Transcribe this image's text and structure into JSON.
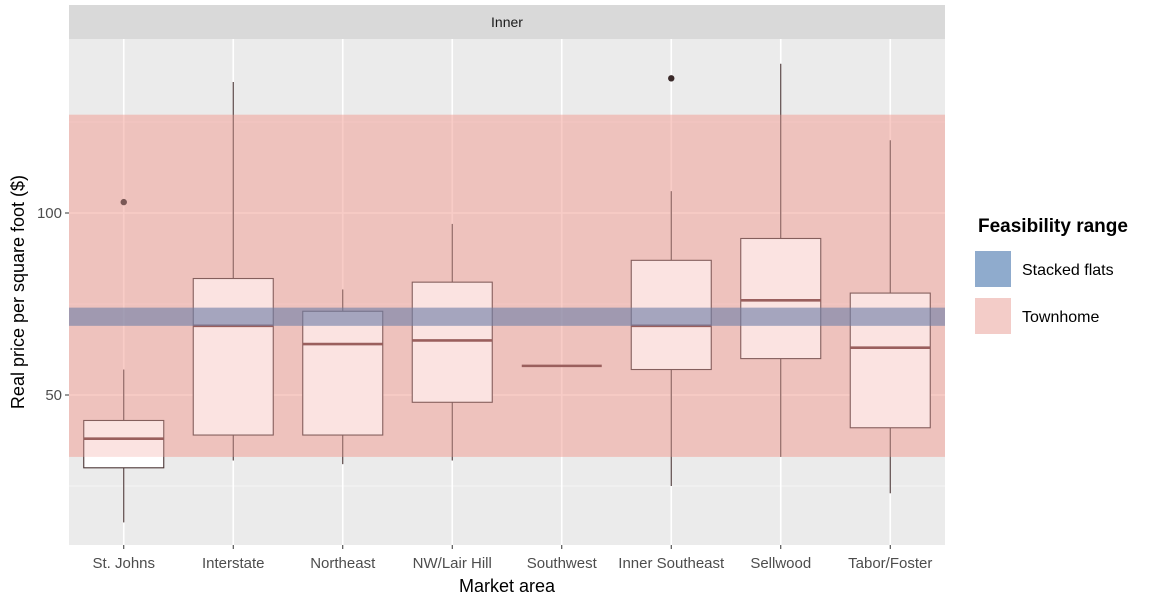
{
  "chart_data": {
    "type": "box",
    "facet": "Inner",
    "xlabel": "Market area",
    "ylabel": "Real price per square foot ($)",
    "ylim": [
      10,
      150
    ],
    "yticks": [
      50,
      100
    ],
    "grid": true,
    "categories": [
      "St. Johns",
      "Interstate",
      "Northeast",
      "NW/Lair Hill",
      "Southwest",
      "Inner Southeast",
      "Sellwood",
      "Tabor/Foster"
    ],
    "boxes": [
      {
        "category": "St. Johns",
        "min": 15,
        "q1": 30,
        "median": 38,
        "q3": 43,
        "max": 57,
        "outliers": [
          103
        ]
      },
      {
        "category": "Interstate",
        "min": 32,
        "q1": 39,
        "median": 69,
        "q3": 82,
        "max": 136,
        "outliers": []
      },
      {
        "category": "Northeast",
        "min": 31,
        "q1": 39,
        "median": 64,
        "q3": 73,
        "max": 79,
        "outliers": []
      },
      {
        "category": "NW/Lair Hill",
        "min": 32,
        "q1": 48,
        "median": 65,
        "q3": 81,
        "max": 97,
        "outliers": []
      },
      {
        "category": "Southwest",
        "min": 58,
        "q1": 58,
        "median": 58,
        "q3": 58,
        "max": 58,
        "outliers": []
      },
      {
        "category": "Inner Southeast",
        "min": 25,
        "q1": 57,
        "median": 69,
        "q3": 87,
        "max": 106,
        "outliers": [
          137
        ]
      },
      {
        "category": "Sellwood",
        "min": 33,
        "q1": 60,
        "median": 76,
        "q3": 93,
        "max": 141,
        "outliers": []
      },
      {
        "category": "Tabor/Foster",
        "min": 23,
        "q1": 41,
        "median": 63,
        "q3": 78,
        "max": 120,
        "outliers": []
      }
    ],
    "feasibility_ranges": [
      {
        "name": "Stacked flats",
        "ymin": 69,
        "ymax": 74,
        "color": "#7b9cc4"
      },
      {
        "name": "Townhome",
        "ymin": 33,
        "ymax": 127,
        "color": "#f2c6c2"
      }
    ],
    "legend": {
      "title": "Feasibility range",
      "position": "right"
    }
  }
}
